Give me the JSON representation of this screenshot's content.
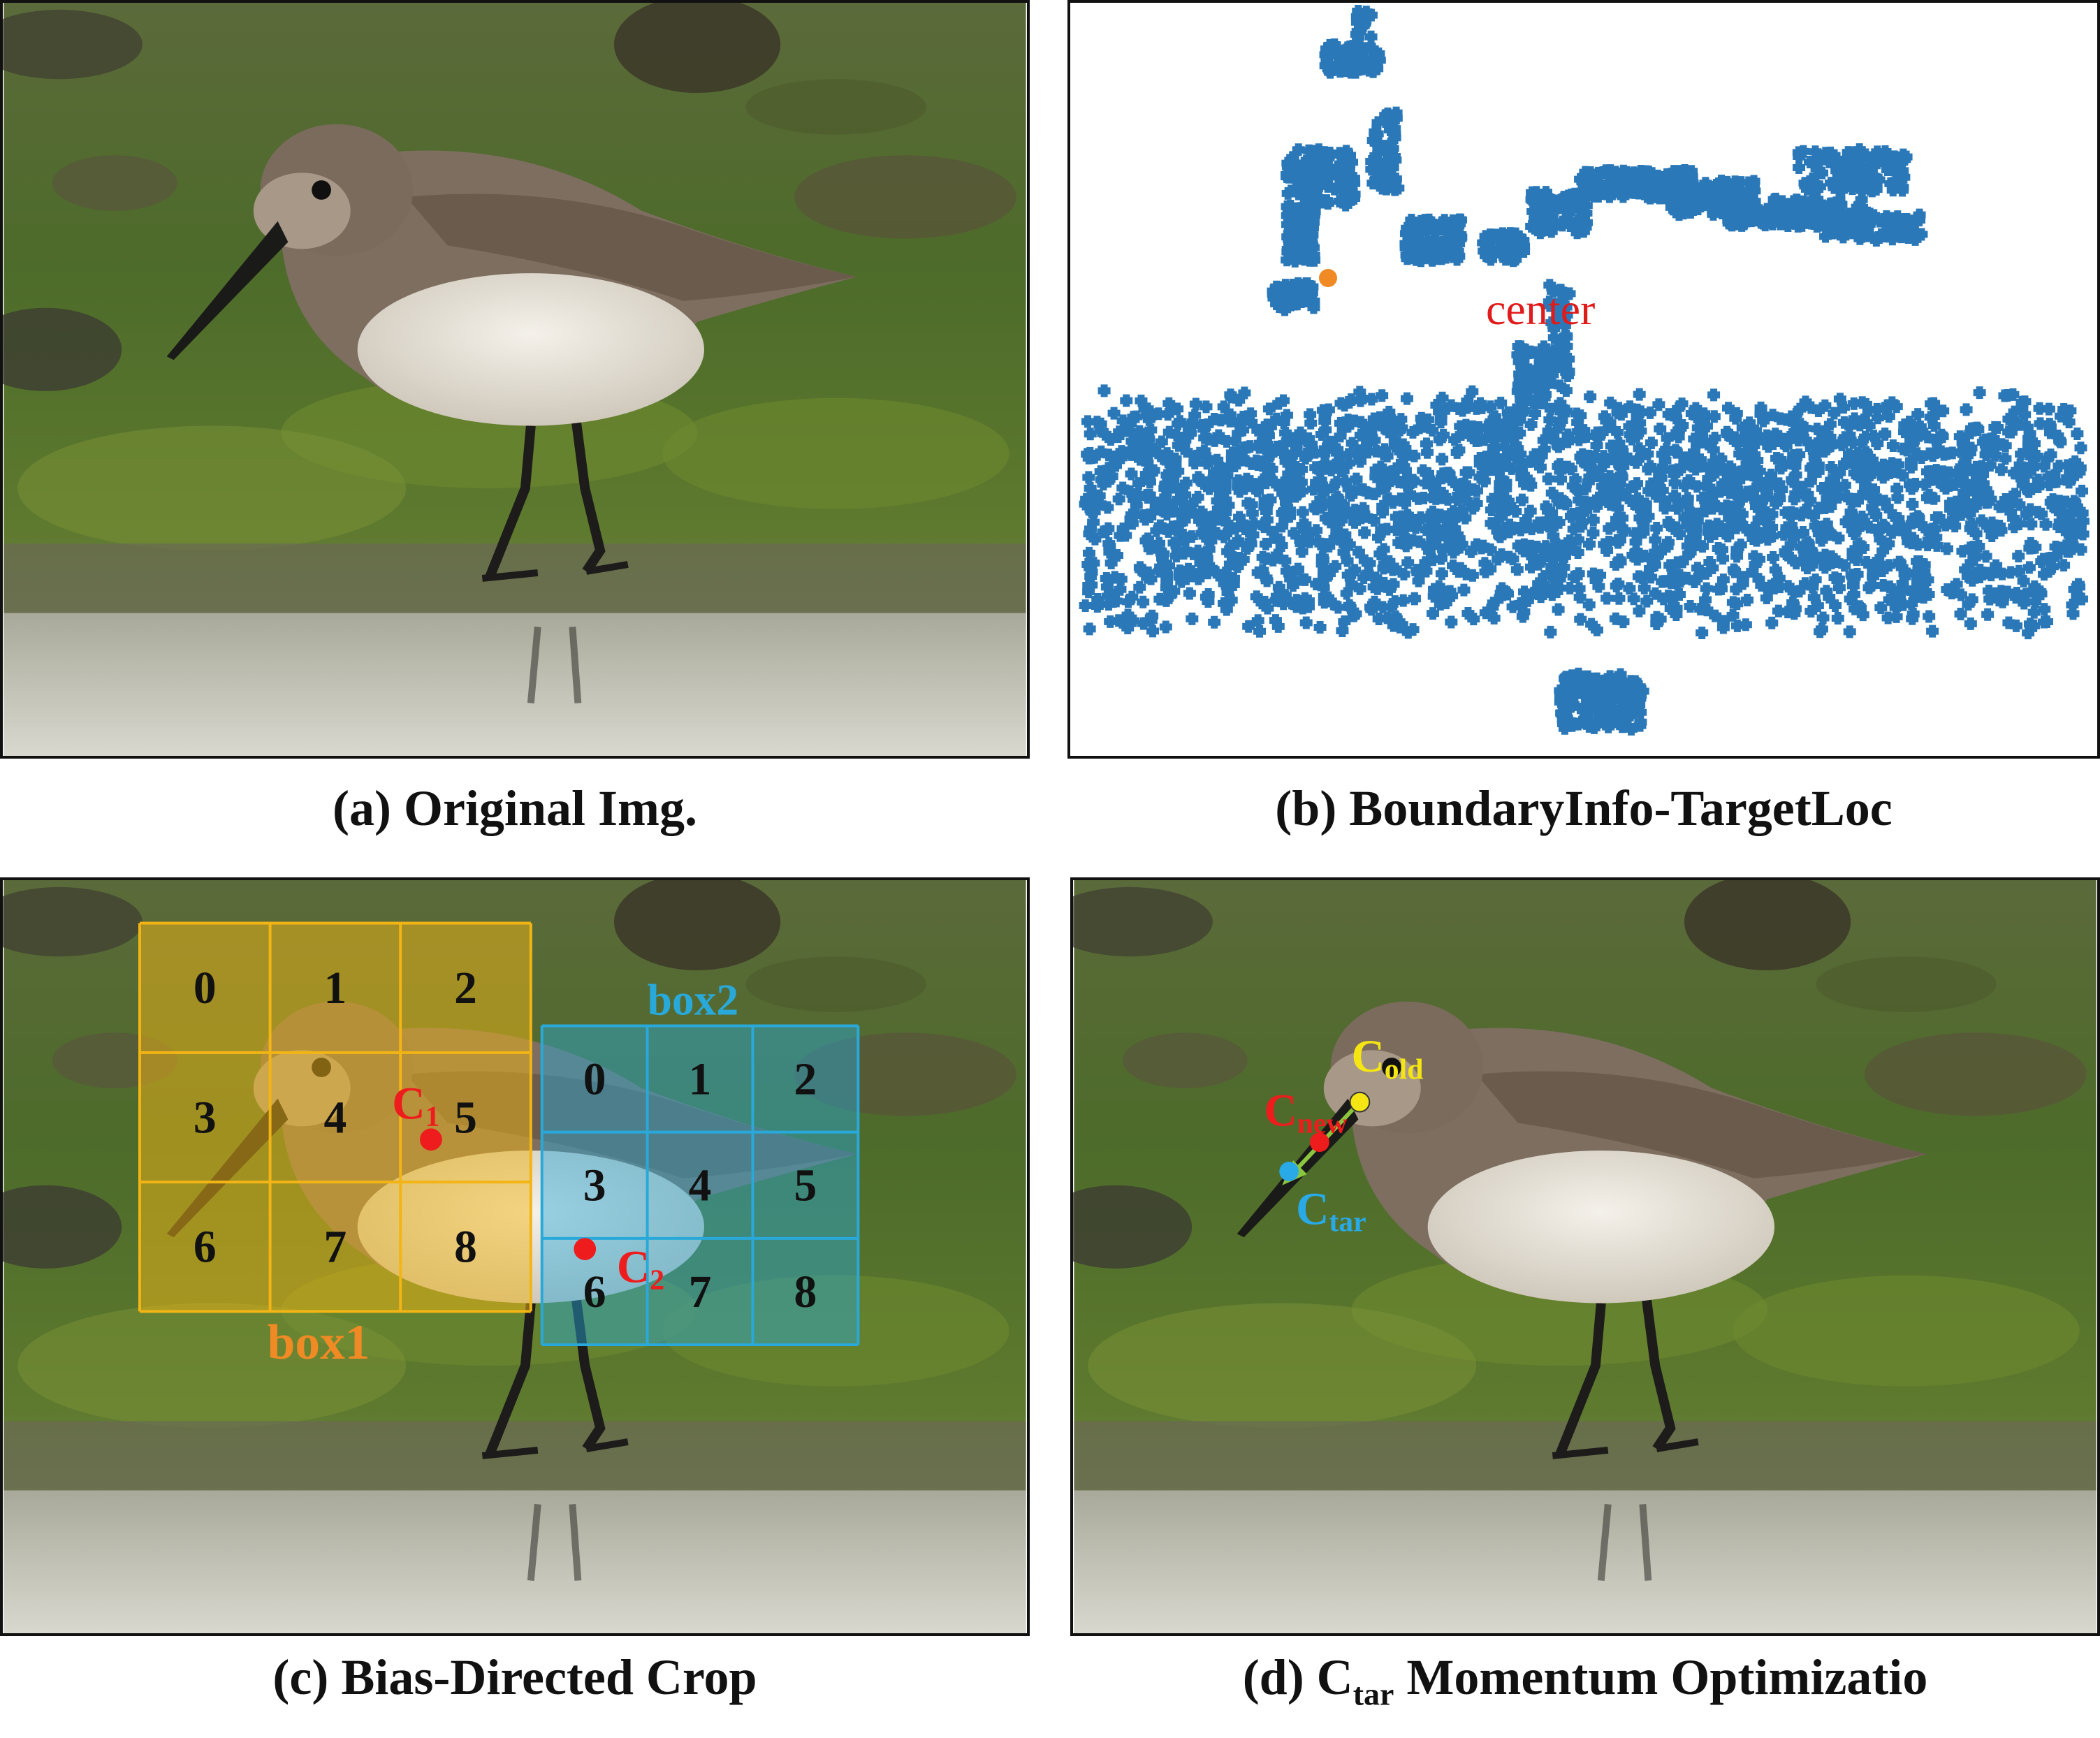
{
  "captions": {
    "a": "(a) Original Img.",
    "b": "(b) BoundaryInfo-TargetLoc",
    "c": "(c) Bias-Directed Crop",
    "d_prefix": "(d) C",
    "d_sub": "tar",
    "d_suffix": " Momentum Optimizatio"
  },
  "panel_b": {
    "center_label": "center",
    "point_color": "#2b78b8",
    "center_color": "#f08a24",
    "label_color": "#e01b1b"
  },
  "panel_c": {
    "box1_label": "box1",
    "box2_label": "box2",
    "box1_cells": [
      "0",
      "1",
      "2",
      "3",
      "4",
      "5",
      "6",
      "7",
      "8"
    ],
    "box2_cells": [
      "0",
      "1",
      "2",
      "3",
      "4",
      "5",
      "6",
      "7",
      "8"
    ],
    "c1_main": "C",
    "c1_sub": "1",
    "c2_main": "C",
    "c2_sub": "2",
    "box1_color": "#f2b515",
    "box2_color": "#29a9d9",
    "box1_label_color": "#f08a24",
    "center_color": "#ee1c1c"
  },
  "panel_d": {
    "c_old_main": "C",
    "c_old_sub": "old",
    "c_new_main": "C",
    "c_new_sub": "new",
    "c_tar_main": "C",
    "c_tar_sub": "tar",
    "c_old_color": "#f5e613",
    "c_new_color": "#ee1c1c",
    "c_tar_color": "#29a9e6",
    "arrow_color": "#8cc63f"
  }
}
